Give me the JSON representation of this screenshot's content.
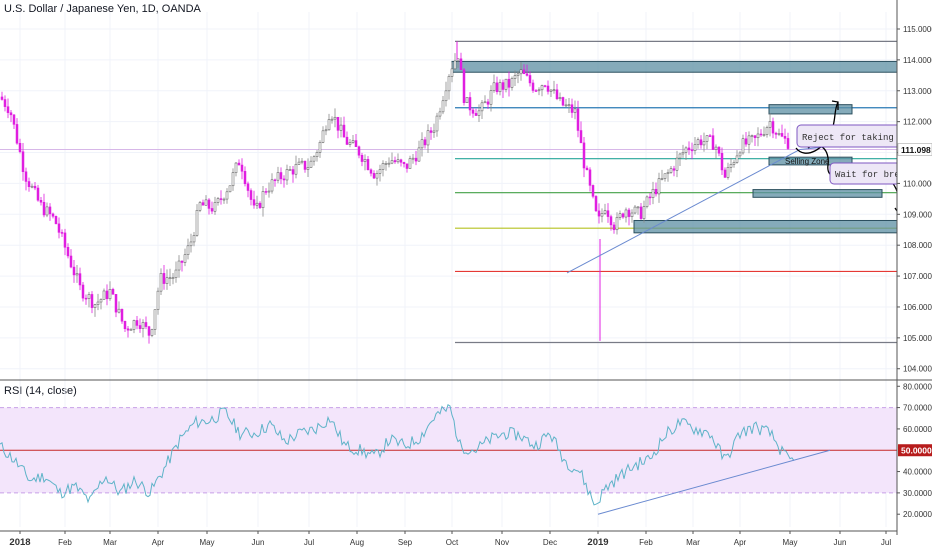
{
  "main": {
    "title": "U.S. Dollar / Japanese Yen, 1D, OANDA",
    "ylim": [
      103.7,
      115.55
    ],
    "y_ticks": [
      "115.0000",
      "114.0000",
      "113.0000",
      "112.0000",
      "111.0000",
      "110.0000",
      "109.0000",
      "108.0000",
      "107.0000",
      "106.0000",
      "105.0000",
      "104.0000"
    ],
    "last_price": "111.098",
    "candle_colors": {
      "up": "#ffffff",
      "down": "#e01ee0"
    }
  },
  "x_axis": {
    "labels": [
      "2018",
      "Feb",
      "Mar",
      "Apr",
      "May",
      "Jun",
      "Jul",
      "Aug",
      "Sep",
      "Oct",
      "Nov",
      "Dec",
      "2019",
      "Feb",
      "Mar",
      "Apr",
      "May",
      "Jun",
      "Jul"
    ]
  },
  "chart_data": {
    "type": "candlestick",
    "series": [
      {
        "name": "USD/JPY",
        "approx_close_path": [
          [
            0,
            112.8
          ],
          [
            10,
            112.4
          ],
          [
            25,
            110.3
          ],
          [
            40,
            109.3
          ],
          [
            55,
            108.8
          ],
          [
            70,
            107.5
          ],
          [
            80,
            106.6
          ],
          [
            95,
            106.1
          ],
          [
            110,
            106.5
          ],
          [
            125,
            105.3
          ],
          [
            138,
            105.6
          ],
          [
            150,
            105.1
          ],
          [
            160,
            106.9
          ],
          [
            175,
            107.0
          ],
          [
            190,
            108.0
          ],
          [
            200,
            109.3
          ],
          [
            215,
            109.2
          ],
          [
            230,
            110.0
          ],
          [
            240,
            110.8
          ],
          [
            255,
            109.0
          ],
          [
            265,
            109.8
          ],
          [
            280,
            110.2
          ],
          [
            295,
            110.5
          ],
          [
            310,
            110.6
          ],
          [
            320,
            111.3
          ],
          [
            330,
            112.4
          ],
          [
            345,
            111.4
          ],
          [
            360,
            111.0
          ],
          [
            375,
            110.3
          ],
          [
            390,
            110.8
          ],
          [
            405,
            110.5
          ],
          [
            420,
            111.1
          ],
          [
            435,
            111.9
          ],
          [
            450,
            113.7
          ],
          [
            458,
            114.2
          ],
          [
            465,
            112.6
          ],
          [
            480,
            112.3
          ],
          [
            495,
            113.1
          ],
          [
            510,
            113.2
          ],
          [
            520,
            113.6
          ],
          [
            535,
            113.1
          ],
          [
            545,
            113.3
          ],
          [
            560,
            112.6
          ],
          [
            575,
            112.3
          ],
          [
            585,
            110.5
          ],
          [
            598,
            108.7
          ],
          [
            605,
            109.3
          ],
          [
            615,
            108.6
          ],
          [
            625,
            109.2
          ],
          [
            640,
            109.0
          ],
          [
            655,
            109.8
          ],
          [
            670,
            110.4
          ],
          [
            685,
            111.1
          ],
          [
            700,
            111.4
          ],
          [
            715,
            111.3
          ],
          [
            725,
            110.2
          ],
          [
            740,
            111.2
          ],
          [
            755,
            111.4
          ],
          [
            770,
            112.0
          ],
          [
            780,
            111.5
          ],
          [
            790,
            111.3
          ]
        ]
      },
      {
        "name": "RSI (14, close)",
        "approx_path": [
          [
            0,
            52
          ],
          [
            15,
            45
          ],
          [
            30,
            36
          ],
          [
            45,
            38
          ],
          [
            60,
            30
          ],
          [
            75,
            33
          ],
          [
            90,
            26
          ],
          [
            105,
            38
          ],
          [
            120,
            30
          ],
          [
            135,
            36
          ],
          [
            150,
            30
          ],
          [
            165,
            42
          ],
          [
            180,
            55
          ],
          [
            195,
            63
          ],
          [
            210,
            64
          ],
          [
            225,
            68
          ],
          [
            240,
            58
          ],
          [
            255,
            58
          ],
          [
            270,
            62
          ],
          [
            285,
            54
          ],
          [
            300,
            58
          ],
          [
            315,
            60
          ],
          [
            330,
            65
          ],
          [
            345,
            52
          ],
          [
            360,
            50
          ],
          [
            375,
            47
          ],
          [
            390,
            55
          ],
          [
            405,
            52
          ],
          [
            420,
            56
          ],
          [
            435,
            66
          ],
          [
            450,
            70
          ],
          [
            460,
            52
          ],
          [
            475,
            50
          ],
          [
            490,
            55
          ],
          [
            505,
            58
          ],
          [
            520,
            57
          ],
          [
            535,
            52
          ],
          [
            550,
            58
          ],
          [
            565,
            45
          ],
          [
            580,
            40
          ],
          [
            595,
            24
          ],
          [
            605,
            32
          ],
          [
            620,
            38
          ],
          [
            635,
            43
          ],
          [
            650,
            46
          ],
          [
            665,
            57
          ],
          [
            680,
            63
          ],
          [
            695,
            60
          ],
          [
            710,
            58
          ],
          [
            725,
            45
          ],
          [
            740,
            58
          ],
          [
            755,
            61
          ],
          [
            770,
            58
          ],
          [
            785,
            47
          ],
          [
            795,
            44
          ]
        ]
      }
    ],
    "rsi": {
      "title": "RSI (14, close)",
      "ylim": [
        14,
        82
      ],
      "band": [
        30,
        70
      ],
      "mid": 50,
      "mid_label": "50.0000",
      "y_ticks": [
        "80.0000",
        "70.0000",
        "60.0000",
        "40.0000",
        "30.0000",
        "20.0000"
      ]
    },
    "annotations": {
      "notes": [
        "Reject for taking support line",
        "Wait for breakout"
      ],
      "zone_label": "Selling Zone"
    },
    "horizontal_levels": [
      {
        "price": 114.6,
        "color": "#787b86"
      },
      {
        "price": 112.45,
        "color": "#2a7ab5"
      },
      {
        "price": 110.8,
        "color": "#26a69a"
      },
      {
        "price": 109.7,
        "color": "#43a047"
      },
      {
        "price": 108.55,
        "color": "#b5c220"
      },
      {
        "price": 107.15,
        "color": "#e53935"
      },
      {
        "price": 104.85,
        "color": "#787b86"
      }
    ]
  }
}
